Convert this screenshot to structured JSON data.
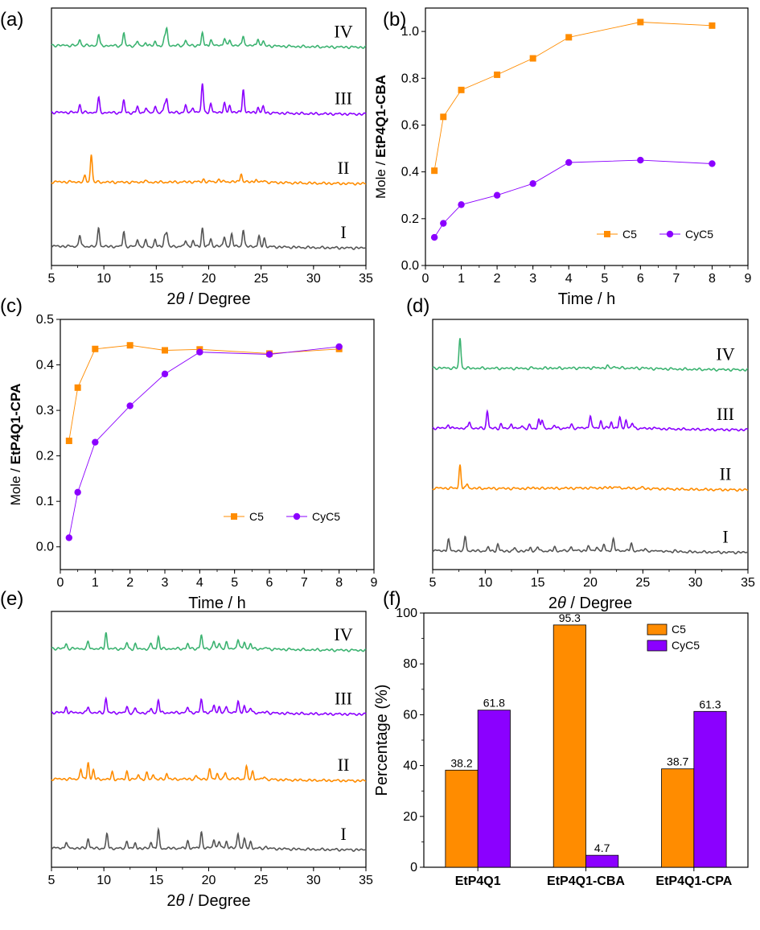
{
  "colors": {
    "c5": "#ff8c00",
    "cyc5": "#8b00ff",
    "green": "#3cb371",
    "gray": "#555555"
  },
  "chart_data": [
    {
      "panel": "(a)",
      "type": "line",
      "xlabel_prefix": "2",
      "xlabel_theta": "θ",
      "xlabel_suffix": "/ Degree",
      "xlim": [
        5,
        35
      ],
      "xticks": [
        "5",
        "10",
        "15",
        "20",
        "25",
        "30",
        "35"
      ],
      "series": [
        {
          "label": "IV",
          "color": "#3cb371",
          "base": 0.83,
          "peaks": [
            [
              7.7,
              0.4
            ],
            [
              9.5,
              0.75
            ],
            [
              11.9,
              0.85
            ],
            [
              13.2,
              0.3
            ],
            [
              14.0,
              0.25
            ],
            [
              14.9,
              0.3
            ],
            [
              15.8,
              0.5
            ],
            [
              16.0,
              1.15
            ],
            [
              17.8,
              0.35
            ],
            [
              19.4,
              0.8
            ],
            [
              20.2,
              0.35
            ],
            [
              21.5,
              0.45
            ],
            [
              22.0,
              0.35
            ],
            [
              23.3,
              0.65
            ],
            [
              24.7,
              0.5
            ],
            [
              25.2,
              0.3
            ]
          ]
        },
        {
          "label": "III",
          "color": "#8b00ff",
          "base": 0.57,
          "peaks": [
            [
              7.7,
              0.5
            ],
            [
              9.5,
              0.95
            ],
            [
              11.9,
              0.8
            ],
            [
              13.2,
              0.4
            ],
            [
              14.0,
              0.35
            ],
            [
              14.9,
              0.45
            ],
            [
              15.8,
              0.55
            ],
            [
              16.0,
              0.85
            ],
            [
              17.8,
              0.45
            ],
            [
              18.5,
              0.35
            ],
            [
              19.4,
              1.9
            ],
            [
              20.2,
              0.5
            ],
            [
              21.5,
              0.55
            ],
            [
              22.0,
              0.45
            ],
            [
              23.3,
              1.5
            ],
            [
              24.7,
              0.35
            ],
            [
              25.2,
              0.4
            ]
          ]
        },
        {
          "label": "II",
          "color": "#ff8c00",
          "base": 0.3,
          "peaks": [
            [
              8.2,
              0.4
            ],
            [
              8.8,
              1.8
            ],
            [
              13.9,
              0.12
            ],
            [
              19.5,
              0.15
            ],
            [
              21.0,
              0.15
            ],
            [
              23.1,
              0.55
            ],
            [
              24.5,
              0.2
            ],
            [
              25.3,
              0.15
            ]
          ]
        },
        {
          "label": "I",
          "color": "#555555",
          "base": 0.05,
          "peaks": [
            [
              7.7,
              0.75
            ],
            [
              9.5,
              1.25
            ],
            [
              11.9,
              1.0
            ],
            [
              13.2,
              0.5
            ],
            [
              14.0,
              0.4
            ],
            [
              14.9,
              0.45
            ],
            [
              15.8,
              0.7
            ],
            [
              16.0,
              0.85
            ],
            [
              17.8,
              0.4
            ],
            [
              18.5,
              0.35
            ],
            [
              19.4,
              1.15
            ],
            [
              20.2,
              0.45
            ],
            [
              21.5,
              0.6
            ],
            [
              22.2,
              0.75
            ],
            [
              23.3,
              1.05
            ],
            [
              24.8,
              0.65
            ],
            [
              25.3,
              0.55
            ]
          ]
        }
      ]
    },
    {
      "panel": "(b)",
      "type": "line",
      "xlabel": "Time / h",
      "ylabel_prefix": "Mole / ",
      "ylabel_bold": "EtP4Q1-CBA",
      "xlim": [
        0,
        9
      ],
      "ylim": [
        0,
        1.1
      ],
      "xticks": [
        "0",
        "1",
        "2",
        "3",
        "4",
        "5",
        "6",
        "7",
        "8",
        "9"
      ],
      "yticks": [
        "0.0",
        "0.2",
        "0.4",
        "0.6",
        "0.8",
        "1.0"
      ],
      "legend": "bottom-right",
      "series": [
        {
          "name": "C5",
          "color": "#ff8c00",
          "marker": "square",
          "x": [
            0.25,
            0.5,
            1,
            2,
            3,
            4,
            6,
            8
          ],
          "y": [
            0.405,
            0.635,
            0.75,
            0.815,
            0.885,
            0.975,
            1.04,
            1.025
          ]
        },
        {
          "name": "CyC5",
          "color": "#8b00ff",
          "marker": "circle",
          "x": [
            0.25,
            0.5,
            1,
            2,
            3,
            4,
            6,
            8
          ],
          "y": [
            0.12,
            0.18,
            0.26,
            0.3,
            0.35,
            0.44,
            0.45,
            0.435
          ]
        }
      ]
    },
    {
      "panel": "(c)",
      "type": "line",
      "xlabel": "Time / h",
      "ylabel_prefix": "Mole / ",
      "ylabel_bold": "EtP4Q1-CPA",
      "xlim": [
        0,
        9
      ],
      "ylim": [
        -0.05,
        0.5
      ],
      "xticks": [
        "0",
        "1",
        "2",
        "3",
        "4",
        "5",
        "6",
        "7",
        "8",
        "9"
      ],
      "yticks": [
        "0.0",
        "0.1",
        "0.2",
        "0.3",
        "0.4",
        "0.5"
      ],
      "legend": "bottom-right",
      "series": [
        {
          "name": "C5",
          "color": "#ff8c00",
          "marker": "square",
          "x": [
            0.25,
            0.5,
            1,
            2,
            3,
            4,
            6,
            8
          ],
          "y": [
            0.233,
            0.35,
            0.435,
            0.443,
            0.432,
            0.434,
            0.425,
            0.435
          ]
        },
        {
          "name": "CyC5",
          "color": "#8b00ff",
          "marker": "circle",
          "x": [
            0.25,
            0.5,
            1,
            2,
            3,
            4,
            6,
            8
          ],
          "y": [
            0.02,
            0.12,
            0.23,
            0.31,
            0.38,
            0.428,
            0.423,
            0.44
          ]
        }
      ]
    },
    {
      "panel": "(d)",
      "type": "line",
      "xlabel_prefix": "2",
      "xlabel_theta": "θ",
      "xlabel_suffix": "/ Degree",
      "xlim": [
        5,
        35
      ],
      "xticks": [
        "5",
        "10",
        "15",
        "20",
        "25",
        "30",
        "35"
      ],
      "series": [
        {
          "label": "IV",
          "color": "#3cb371",
          "base": 0.78,
          "peaks": [
            [
              7.6,
              2.0
            ],
            [
              14.5,
              0.05
            ],
            [
              16.2,
              0.05
            ],
            [
              21.6,
              0.12
            ],
            [
              22.3,
              0.12
            ],
            [
              25.0,
              0.06
            ]
          ]
        },
        {
          "label": "III",
          "color": "#8b00ff",
          "base": 0.54,
          "peaks": [
            [
              6.5,
              0.25
            ],
            [
              8.5,
              0.45
            ],
            [
              10.2,
              1.15
            ],
            [
              11.5,
              0.3
            ],
            [
              12.5,
              0.35
            ],
            [
              13.5,
              0.2
            ],
            [
              14.2,
              0.2
            ],
            [
              15.1,
              0.6
            ],
            [
              15.4,
              0.55
            ],
            [
              16.6,
              0.2
            ],
            [
              18.2,
              0.25
            ],
            [
              20.0,
              0.85
            ],
            [
              21.0,
              0.45
            ],
            [
              22.0,
              0.4
            ],
            [
              22.8,
              0.7
            ],
            [
              23.4,
              0.55
            ],
            [
              24.0,
              0.35
            ],
            [
              26.0,
              0.1
            ]
          ]
        },
        {
          "label": "II",
          "color": "#ff8c00",
          "base": 0.3,
          "peaks": [
            [
              7.6,
              1.55
            ],
            [
              8.3,
              0.3
            ],
            [
              14.6,
              0.12
            ],
            [
              16.0,
              0.08
            ],
            [
              21.9,
              0.12
            ],
            [
              22.5,
              0.1
            ],
            [
              24.9,
              0.08
            ]
          ]
        },
        {
          "label": "I",
          "color": "#555555",
          "base": 0.05,
          "peaks": [
            [
              6.5,
              0.75
            ],
            [
              8.1,
              0.95
            ],
            [
              10.3,
              0.25
            ],
            [
              11.2,
              0.45
            ],
            [
              12.8,
              0.2
            ],
            [
              14.3,
              0.25
            ],
            [
              15.0,
              0.3
            ],
            [
              16.6,
              0.25
            ],
            [
              18.2,
              0.3
            ],
            [
              19.8,
              0.3
            ],
            [
              20.6,
              0.25
            ],
            [
              21.3,
              0.35
            ],
            [
              22.2,
              0.75
            ],
            [
              23.9,
              0.5
            ],
            [
              25.2,
              0.2
            ],
            [
              26.5,
              0.12
            ],
            [
              28.0,
              0.1
            ]
          ]
        }
      ]
    },
    {
      "panel": "(e)",
      "type": "line",
      "xlabel_prefix": "2",
      "xlabel_theta": "θ",
      "xlabel_suffix": "/ Degree",
      "xlim": [
        5,
        35
      ],
      "xticks": [
        "5",
        "10",
        "15",
        "20",
        "25",
        "30",
        "35"
      ],
      "series": [
        {
          "label": "IV",
          "color": "#3cb371",
          "base": 0.83,
          "peaks": [
            [
              6.4,
              0.3
            ],
            [
              8.5,
              0.45
            ],
            [
              10.2,
              1.05
            ],
            [
              12.2,
              0.4
            ],
            [
              13.0,
              0.3
            ],
            [
              14.5,
              0.35
            ],
            [
              15.2,
              0.8
            ],
            [
              18.0,
              0.3
            ],
            [
              19.3,
              0.85
            ],
            [
              20.5,
              0.45
            ],
            [
              21.0,
              0.35
            ],
            [
              21.7,
              0.35
            ],
            [
              22.8,
              0.6
            ],
            [
              23.4,
              0.45
            ],
            [
              24.0,
              0.3
            ],
            [
              25.5,
              0.1
            ]
          ]
        },
        {
          "label": "III",
          "color": "#8b00ff",
          "base": 0.58,
          "peaks": [
            [
              6.4,
              0.35
            ],
            [
              8.5,
              0.4
            ],
            [
              10.2,
              0.95
            ],
            [
              12.2,
              0.4
            ],
            [
              13.0,
              0.3
            ],
            [
              14.5,
              0.3
            ],
            [
              15.2,
              0.85
            ],
            [
              18.0,
              0.35
            ],
            [
              19.3,
              0.85
            ],
            [
              20.5,
              0.45
            ],
            [
              21.0,
              0.35
            ],
            [
              21.7,
              0.35
            ],
            [
              22.8,
              0.7
            ],
            [
              23.4,
              0.45
            ],
            [
              24.0,
              0.3
            ],
            [
              25.5,
              0.1
            ]
          ]
        },
        {
          "label": "II",
          "color": "#ff8c00",
          "base": 0.32,
          "peaks": [
            [
              7.8,
              0.7
            ],
            [
              8.5,
              1.1
            ],
            [
              9.0,
              0.6
            ],
            [
              10.8,
              0.45
            ],
            [
              12.2,
              0.5
            ],
            [
              13.3,
              0.35
            ],
            [
              14.1,
              0.4
            ],
            [
              14.7,
              0.35
            ],
            [
              16.0,
              0.4
            ],
            [
              18.8,
              0.2
            ],
            [
              20.1,
              0.6
            ],
            [
              20.8,
              0.35
            ],
            [
              21.6,
              0.4
            ],
            [
              23.6,
              0.8
            ],
            [
              24.2,
              0.5
            ],
            [
              25.3,
              0.2
            ]
          ]
        },
        {
          "label": "I",
          "color": "#555555",
          "base": 0.05,
          "peaks": [
            [
              6.4,
              0.4
            ],
            [
              8.5,
              0.65
            ],
            [
              10.3,
              0.95
            ],
            [
              12.2,
              0.5
            ],
            [
              13.0,
              0.35
            ],
            [
              14.5,
              0.45
            ],
            [
              15.2,
              1.2
            ],
            [
              18.0,
              0.45
            ],
            [
              19.3,
              1.05
            ],
            [
              20.5,
              0.6
            ],
            [
              21.0,
              0.45
            ],
            [
              21.7,
              0.45
            ],
            [
              22.8,
              0.95
            ],
            [
              23.4,
              0.6
            ],
            [
              24.0,
              0.4
            ],
            [
              25.5,
              0.15
            ]
          ]
        }
      ]
    },
    {
      "panel": "(f)",
      "type": "bar",
      "ylabel": "Percentage (%)",
      "ylim": [
        0,
        100
      ],
      "yticks": [
        "0",
        "20",
        "40",
        "60",
        "80",
        "100"
      ],
      "categories": [
        "EtP4Q1",
        "EtP4Q1-CBA",
        "EtP4Q1-CPA"
      ],
      "legend": "top-right",
      "series": [
        {
          "name": "C5",
          "color": "#ff8c00",
          "values": [
            38.2,
            95.3,
            38.7
          ],
          "labels": [
            "38.2",
            "95.3",
            "38.7"
          ]
        },
        {
          "name": "CyC5",
          "color": "#8b00ff",
          "values": [
            61.8,
            4.7,
            61.3
          ],
          "labels": [
            "61.8",
            "4.7",
            "61.3"
          ]
        }
      ]
    }
  ]
}
